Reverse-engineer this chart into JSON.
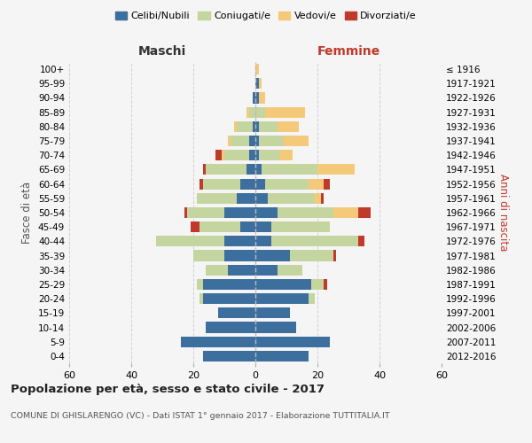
{
  "age_groups": [
    "0-4",
    "5-9",
    "10-14",
    "15-19",
    "20-24",
    "25-29",
    "30-34",
    "35-39",
    "40-44",
    "45-49",
    "50-54",
    "55-59",
    "60-64",
    "65-69",
    "70-74",
    "75-79",
    "80-84",
    "85-89",
    "90-94",
    "95-99",
    "100+"
  ],
  "birth_years": [
    "2012-2016",
    "2007-2011",
    "2002-2006",
    "1997-2001",
    "1992-1996",
    "1987-1991",
    "1982-1986",
    "1977-1981",
    "1972-1976",
    "1967-1971",
    "1962-1966",
    "1957-1961",
    "1952-1956",
    "1947-1951",
    "1942-1946",
    "1937-1941",
    "1932-1936",
    "1927-1931",
    "1922-1926",
    "1917-1921",
    "≤ 1916"
  ],
  "colors": {
    "celibi": "#3d6f9e",
    "coniugati": "#c5d5a0",
    "vedovi": "#f5c97a",
    "divorziati": "#c0392b"
  },
  "males": {
    "celibi": [
      17,
      24,
      16,
      12,
      17,
      17,
      9,
      10,
      10,
      5,
      10,
      6,
      5,
      3,
      2,
      2,
      1,
      0,
      1,
      0,
      0
    ],
    "coniugati": [
      0,
      0,
      0,
      0,
      1,
      2,
      7,
      10,
      22,
      13,
      12,
      13,
      12,
      13,
      8,
      6,
      5,
      2,
      0,
      0,
      0
    ],
    "vedovi": [
      0,
      0,
      0,
      0,
      0,
      0,
      0,
      0,
      0,
      0,
      0,
      0,
      0,
      0,
      1,
      1,
      1,
      1,
      0,
      0,
      0
    ],
    "divorziati": [
      0,
      0,
      0,
      0,
      0,
      0,
      0,
      0,
      0,
      3,
      1,
      0,
      1,
      1,
      2,
      0,
      0,
      0,
      0,
      0,
      0
    ]
  },
  "females": {
    "celibi": [
      17,
      24,
      13,
      11,
      17,
      18,
      7,
      11,
      5,
      5,
      7,
      4,
      3,
      2,
      1,
      1,
      1,
      0,
      1,
      1,
      0
    ],
    "coniugati": [
      0,
      0,
      0,
      0,
      2,
      4,
      8,
      14,
      28,
      19,
      18,
      15,
      14,
      18,
      7,
      8,
      6,
      3,
      0,
      0,
      0
    ],
    "vedovi": [
      0,
      0,
      0,
      0,
      0,
      0,
      0,
      0,
      0,
      0,
      8,
      2,
      5,
      12,
      4,
      8,
      7,
      13,
      2,
      1,
      1
    ],
    "divorziati": [
      0,
      0,
      0,
      0,
      0,
      1,
      0,
      1,
      2,
      0,
      4,
      1,
      2,
      0,
      0,
      0,
      0,
      0,
      0,
      0,
      0
    ]
  },
  "title": "Popolazione per età, sesso e stato civile - 2017",
  "subtitle": "COMUNE DI GHISLARENGO (VC) - Dati ISTAT 1° gennaio 2017 - Elaborazione TUTTITALIA.IT",
  "xlabel_left": "Maschi",
  "xlabel_right": "Femmine",
  "ylabel_left": "Fasce di età",
  "ylabel_right": "Anni di nascita",
  "xlim": 60,
  "bg_color": "#f5f5f5",
  "grid_color": "#cccccc"
}
